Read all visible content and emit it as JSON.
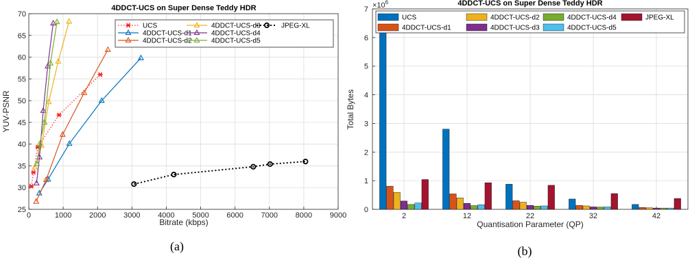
{
  "chart_data": [
    {
      "type": "line",
      "title": "4DDCT-UCS on Super Dense Teddy HDR",
      "xlabel": "Bitrate (kbps)",
      "ylabel": "YUV-PSNR",
      "xlim": [
        0,
        9000
      ],
      "ylim": [
        25,
        70
      ],
      "xticks": [
        "0",
        "1000",
        "2000",
        "3000",
        "4000",
        "5000",
        "6000",
        "7000",
        "8000",
        "9000"
      ],
      "yticks": [
        "25",
        "30",
        "35",
        "40",
        "45",
        "50",
        "55",
        "60",
        "65",
        "70"
      ],
      "grid": true,
      "legend_position": "top-right",
      "series": [
        {
          "name": "UCS",
          "color": "#ff2020",
          "marker": "star",
          "dash": "dotted",
          "x": [
            75,
            135,
            260,
            880,
            2080
          ],
          "y": [
            30.3,
            33.5,
            39.3,
            46.7,
            56.0
          ]
        },
        {
          "name": "4DDCT-UCS-d1",
          "color": "#0072bd",
          "marker": "triangle",
          "dash": "solid",
          "x": [
            305,
            560,
            1180,
            2120,
            3260
          ],
          "y": [
            28.7,
            31.9,
            40.1,
            50.0,
            59.8
          ]
        },
        {
          "name": "4DDCT-UCS-d2",
          "color": "#d95319",
          "marker": "triangle",
          "dash": "solid",
          "x": [
            215,
            505,
            985,
            1610,
            2300
          ],
          "y": [
            26.8,
            31.8,
            42.2,
            51.8,
            61.7
          ]
        },
        {
          "name": "4DDCT-UCS-d3",
          "color": "#edb120",
          "marker": "triangle",
          "dash": "solid",
          "x": [
            175,
            375,
            580,
            855,
            1170
          ],
          "y": [
            34.7,
            39.7,
            49.7,
            59.0,
            68.2
          ]
        },
        {
          "name": "4DDCT-UCS-d4",
          "color": "#7e2f8e",
          "marker": "triangle",
          "dash": "solid",
          "x": [
            225,
            310,
            420,
            550,
            710
          ],
          "y": [
            31.0,
            37.0,
            47.7,
            57.9,
            67.8
          ]
        },
        {
          "name": "4DDCT-UCS-d5",
          "color": "#77ac30",
          "marker": "triangle",
          "dash": "solid",
          "x": [
            235,
            315,
            455,
            630,
            820
          ],
          "y": [
            35.5,
            40.0,
            45.0,
            58.6,
            68.1
          ]
        },
        {
          "name": "JPEG-XL",
          "color": "#000000",
          "marker": "circle",
          "dash": "dotted",
          "x": [
            3060,
            4220,
            6530,
            7020,
            8050
          ],
          "y": [
            30.8,
            33.0,
            34.8,
            35.4,
            36.0
          ]
        }
      ]
    },
    {
      "type": "bar",
      "title": "4DDCT-UCS on Super Dense Teddy HDR",
      "xlabel": "Quantisation Parameter (QP)",
      "ylabel": "Total Bytes",
      "categories": [
        "2",
        "12",
        "22",
        "32",
        "42"
      ],
      "ylim": [
        0,
        7000000
      ],
      "yticks": [
        "0",
        "1",
        "2",
        "3",
        "4",
        "5",
        "6",
        "7"
      ],
      "y_exponent_base": "×10",
      "y_exponent": "6",
      "grid": true,
      "legend_position": "top",
      "series": [
        {
          "name": "UCS",
          "color": "#0072bd",
          "values": [
            6500000,
            2800000,
            880000,
            360000,
            170000
          ]
        },
        {
          "name": "4DDCT-UCS-d1",
          "color": "#d95319",
          "values": [
            810000,
            540000,
            300000,
            140000,
            65000
          ]
        },
        {
          "name": "4DDCT-UCS-d2",
          "color": "#edb120",
          "values": [
            590000,
            400000,
            250000,
            120000,
            55000
          ]
        },
        {
          "name": "4DDCT-UCS-d3",
          "color": "#7e2f8e",
          "values": [
            290000,
            210000,
            140000,
            85000,
            45000
          ]
        },
        {
          "name": "4DDCT-UCS-d4",
          "color": "#77ac30",
          "values": [
            170000,
            130000,
            110000,
            80000,
            45000
          ]
        },
        {
          "name": "4DDCT-UCS-d5",
          "color": "#4dbeee",
          "values": [
            220000,
            160000,
            120000,
            85000,
            45000
          ]
        },
        {
          "name": "JPEG-XL",
          "color": "#a2142f",
          "values": [
            1040000,
            930000,
            840000,
            550000,
            380000
          ]
        }
      ]
    }
  ],
  "captions": [
    "(a)",
    "(b)"
  ]
}
